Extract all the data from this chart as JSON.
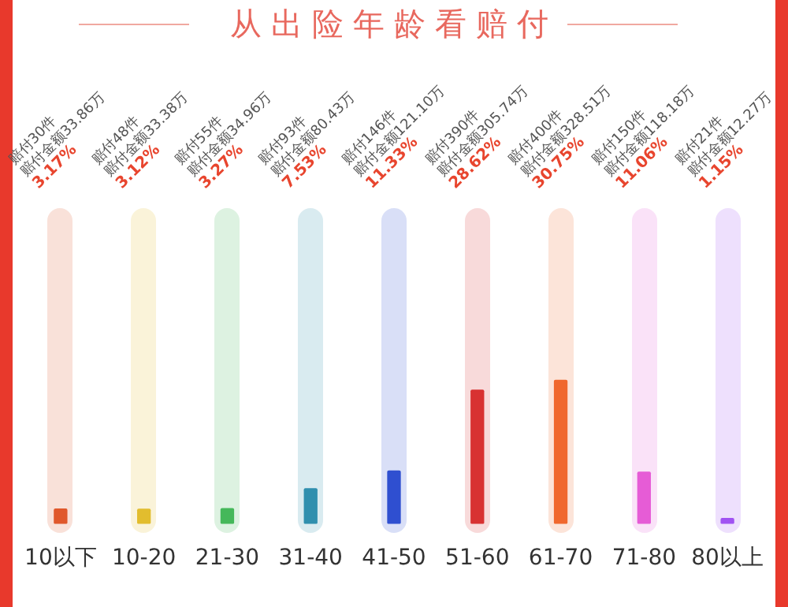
{
  "chart_data": {
    "type": "bar",
    "title": "从出险年龄看赔付",
    "categories": [
      "10以下",
      "10-20",
      "21-30",
      "31-40",
      "41-50",
      "51-60",
      "61-70",
      "71-80",
      "80以上"
    ],
    "values": [
      3.17,
      3.12,
      3.27,
      7.53,
      11.33,
      28.62,
      30.75,
      11.06,
      1.15
    ],
    "value_labels": [
      "3.17%",
      "3.12%",
      "3.27%",
      "7.53%",
      "11.33%",
      "28.62%",
      "30.75%",
      "11.06%",
      "1.15%"
    ],
    "colors": [
      "#e0582c",
      "#e2bd2e",
      "#45b85a",
      "#2f8fae",
      "#2f4fd0",
      "#d83232",
      "#f0682e",
      "#e65cd6",
      "#a052f2"
    ],
    "annotations": [
      "赔付30件",
      "赔付金额33.86万",
      "赔付48件",
      "赔付金额33.38万",
      "赔付55件",
      "赔付金额34.96万",
      "赔付93件",
      "赔付金额80.43万",
      "赔付146件",
      "赔付金额121.10万",
      "赔付390件",
      "赔付金额305.74万",
      "赔付400件",
      "赔付金额328.51万",
      "赔付150件",
      "赔付金额118.18万",
      "赔付21件",
      "赔付金额12.27万"
    ],
    "grid": false,
    "legend": false
  }
}
